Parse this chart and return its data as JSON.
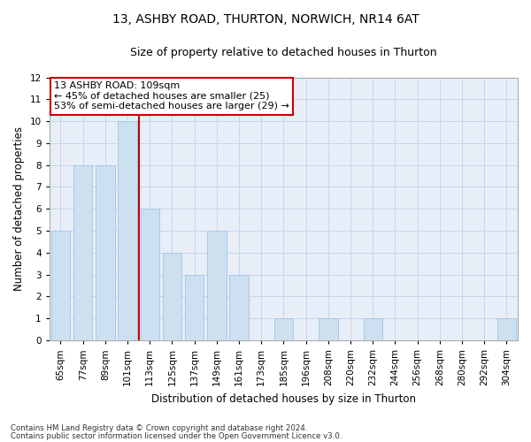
{
  "title1": "13, ASHBY ROAD, THURTON, NORWICH, NR14 6AT",
  "title2": "Size of property relative to detached houses in Thurton",
  "xlabel": "Distribution of detached houses by size in Thurton",
  "ylabel": "Number of detached properties",
  "categories": [
    "65sqm",
    "77sqm",
    "89sqm",
    "101sqm",
    "113sqm",
    "125sqm",
    "137sqm",
    "149sqm",
    "161sqm",
    "173sqm",
    "185sqm",
    "196sqm",
    "208sqm",
    "220sqm",
    "232sqm",
    "244sqm",
    "256sqm",
    "268sqm",
    "280sqm",
    "292sqm",
    "304sqm"
  ],
  "values": [
    5,
    8,
    8,
    10,
    6,
    4,
    3,
    5,
    3,
    0,
    1,
    0,
    1,
    0,
    1,
    0,
    0,
    0,
    0,
    0,
    1
  ],
  "bar_color": "#cce0f0",
  "bar_edge_color": "#a8c8e8",
  "vline_color": "#cc0000",
  "vline_pos": 3.5,
  "ylim": [
    0,
    12
  ],
  "yticks": [
    0,
    1,
    2,
    3,
    4,
    5,
    6,
    7,
    8,
    9,
    10,
    11,
    12
  ],
  "annotation_title": "13 ASHBY ROAD: 109sqm",
  "annotation_line1": "← 45% of detached houses are smaller (25)",
  "annotation_line2": "53% of semi-detached houses are larger (29) →",
  "annotation_box_facecolor": "#ffffff",
  "annotation_box_edgecolor": "#cc0000",
  "grid_color": "#c8d4e8",
  "background_color": "#e8eef8",
  "footnote1": "Contains HM Land Registry data © Crown copyright and database right 2024.",
  "footnote2": "Contains public sector information licensed under the Open Government Licence v3.0.",
  "title_fontsize": 10,
  "subtitle_fontsize": 9,
  "tick_fontsize": 7.5,
  "ylabel_fontsize": 8.5,
  "xlabel_fontsize": 8.5,
  "annotation_fontsize": 8,
  "footnote_fontsize": 6.2
}
